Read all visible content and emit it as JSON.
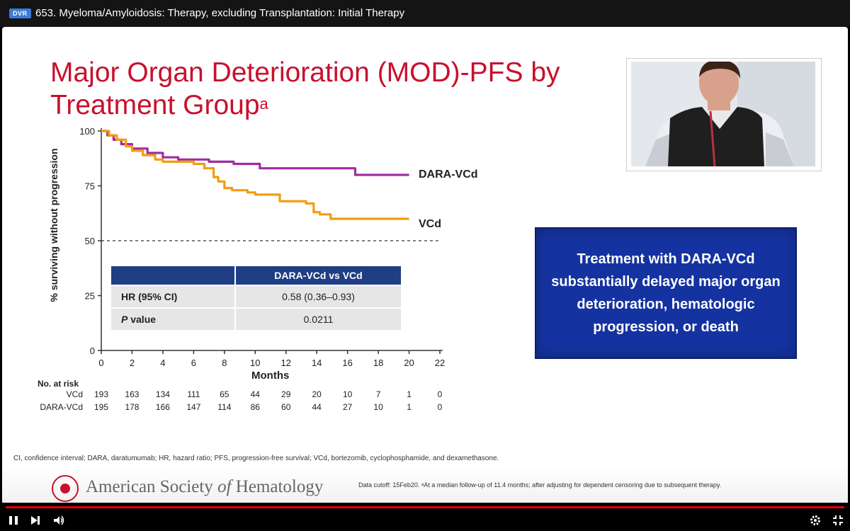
{
  "window": {
    "badge": "DVR",
    "title": "653. Myeloma/Amyloidosis: Therapy, excluding Transplantation: Initial Therapy"
  },
  "slide": {
    "title": "Major Organ Deterioration (MOD)-PFS by Treatment Group",
    "title_superscript": "a",
    "y_axis_label": "% surviving without progression",
    "x_axis_label": "Months",
    "series_labels": {
      "dara": "DARA-VCd",
      "vcd": "VCd"
    },
    "colors": {
      "dara": "#a02c9f",
      "vcd": "#f29c10",
      "title": "#c8102e",
      "table_header": "#1f3e85",
      "callout": "#1533a0"
    },
    "table": {
      "header": "DARA-VCd vs VCd",
      "rows": [
        {
          "label_prefix": "HR (95% CI)",
          "label_italic": "",
          "value": "0.58 (0.36–0.93)"
        },
        {
          "label_prefix": "",
          "label_italic": "P",
          "label_suffix": " value",
          "value": "0.0211"
        }
      ]
    },
    "risk_table": {
      "heading": "No. at risk",
      "rows": [
        {
          "label": "VCd",
          "values": [
            "193",
            "163",
            "134",
            "111",
            "65",
            "44",
            "29",
            "20",
            "10",
            "7",
            "1",
            "0"
          ]
        },
        {
          "label": "DARA-VCd",
          "values": [
            "195",
            "178",
            "166",
            "147",
            "114",
            "86",
            "60",
            "44",
            "27",
            "10",
            "1",
            "0"
          ]
        }
      ]
    },
    "callout": "Treatment with DARA-VCd substantially delayed major organ deterioration, hematologic progression, or death",
    "footnote": "CI, confidence interval; DARA, daratumumab; HR, hazard ratio; PFS, progression-free survival; VCd, bortezomib, cyclophosphamide, and dexamethasone.",
    "organization": "American Society of Hematology",
    "organization_prefix": "American Society ",
    "organization_of": "of",
    "organization_suffix": " Hematology",
    "data_cutoff": "Data cutoff: 15Feb20. ᵃAt a median follow-up of 11.4 months; after adjusting for dependent censoring due to subsequent therapy."
  },
  "chart_data": {
    "type": "line",
    "title": "Major Organ Deterioration (MOD)-PFS by Treatment Group",
    "xlabel": "Months",
    "ylabel": "% surviving without progression",
    "xlim": [
      0,
      22
    ],
    "ylim": [
      0,
      100
    ],
    "x_ticks": [
      0,
      2,
      4,
      6,
      8,
      10,
      12,
      14,
      16,
      18,
      20,
      22
    ],
    "y_ticks": [
      0,
      25,
      50,
      75,
      100
    ],
    "reference_line": 50,
    "series": [
      {
        "name": "DARA-VCd",
        "step": [
          [
            0,
            100
          ],
          [
            0.4,
            98
          ],
          [
            0.8,
            96
          ],
          [
            1.3,
            94
          ],
          [
            2,
            92
          ],
          [
            3,
            90
          ],
          [
            4,
            88
          ],
          [
            5,
            87
          ],
          [
            6,
            87
          ],
          [
            7,
            86
          ],
          [
            8,
            86
          ],
          [
            8.6,
            85
          ],
          [
            9.5,
            85
          ],
          [
            10.3,
            83
          ],
          [
            11,
            83
          ],
          [
            12,
            83
          ],
          [
            13,
            83
          ],
          [
            14,
            83
          ],
          [
            15,
            83
          ],
          [
            16,
            83
          ],
          [
            16.5,
            80
          ],
          [
            17,
            80
          ],
          [
            18,
            80
          ],
          [
            19,
            80
          ],
          [
            20,
            80
          ]
        ]
      },
      {
        "name": "VCd",
        "step": [
          [
            0,
            100
          ],
          [
            0.5,
            98
          ],
          [
            1,
            96
          ],
          [
            1.6,
            93
          ],
          [
            2,
            91
          ],
          [
            2.7,
            89
          ],
          [
            3.5,
            87
          ],
          [
            4,
            86
          ],
          [
            5,
            86
          ],
          [
            6,
            85
          ],
          [
            6.7,
            83
          ],
          [
            7.3,
            79
          ],
          [
            7.6,
            77
          ],
          [
            8,
            74
          ],
          [
            8.5,
            73
          ],
          [
            9.5,
            72
          ],
          [
            10,
            71
          ],
          [
            11,
            71
          ],
          [
            11.6,
            68
          ],
          [
            12.5,
            68
          ],
          [
            13.3,
            67
          ],
          [
            13.8,
            63
          ],
          [
            14.2,
            62
          ],
          [
            14.9,
            60
          ],
          [
            16,
            60
          ],
          [
            17,
            60
          ],
          [
            18,
            60
          ],
          [
            19,
            60
          ],
          [
            20,
            60
          ]
        ]
      }
    ]
  }
}
